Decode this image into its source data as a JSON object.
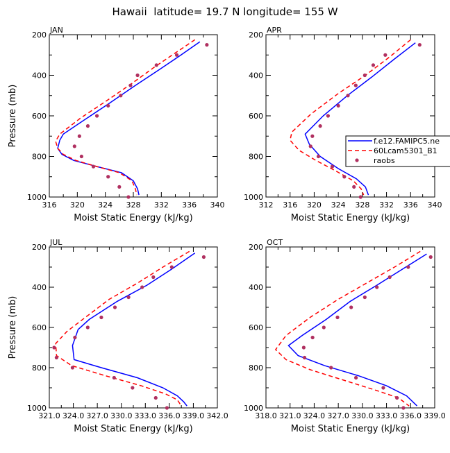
{
  "figure": {
    "title": "Hawaii  latitude= 19.7 N longitude= 155 W"
  },
  "legend": {
    "entries": [
      {
        "label": "f.e12.FAMIPC5.ne",
        "style": "solid",
        "color": "#0000ff"
      },
      {
        "label": "60Lcam5301_B1",
        "style": "dashed",
        "color": "#ff0000"
      },
      {
        "label": "raobs",
        "style": "dot",
        "color": "#b03060"
      }
    ]
  },
  "chart_data": [
    {
      "type": "line",
      "panel_label": "JAN",
      "xlabel": "Moist Static Energy (kJ/kg)",
      "ylabel": "Pressure (mb)",
      "xlim": [
        316,
        340
      ],
      "ylim": [
        200,
        1000
      ],
      "y_inverted": true,
      "xtick_labels": [
        "316",
        "320",
        "324",
        "328",
        "332",
        "336",
        "340"
      ],
      "ytick_labels": [
        "200",
        "400",
        "600",
        "800",
        "1000"
      ],
      "series": [
        {
          "name": "f.e12.FAMIPC5.ne",
          "points": [
            [
              337.5,
              235
            ],
            [
              334.8,
              300
            ],
            [
              331.8,
              370
            ],
            [
              328.3,
              450
            ],
            [
              324.5,
              540
            ],
            [
              321,
              620
            ],
            [
              318,
              690
            ],
            [
              317.5,
              720
            ],
            [
              317.2,
              760
            ],
            [
              317.8,
              790
            ],
            [
              319.5,
              820
            ],
            [
              322.8,
              850
            ],
            [
              326.3,
              880
            ],
            [
              328,
              920
            ],
            [
              328.6,
              960
            ],
            [
              328.8,
              990
            ]
          ]
        },
        {
          "name": "60Lcam5301_B1",
          "points": [
            [
              336.8,
              225
            ],
            [
              334,
              290
            ],
            [
              331,
              360
            ],
            [
              327.8,
              440
            ],
            [
              324,
              530
            ],
            [
              320.5,
              610
            ],
            [
              317.5,
              690
            ],
            [
              316.9,
              725
            ],
            [
              317.2,
              760
            ],
            [
              318,
              790
            ],
            [
              319.8,
              820
            ],
            [
              322.8,
              850
            ],
            [
              326,
              880
            ],
            [
              327.8,
              920
            ],
            [
              328.3,
              960
            ],
            [
              328.5,
              990
            ]
          ]
        },
        {
          "name": "raobs",
          "points": [
            [
              338.5,
              250
            ],
            [
              334.2,
              300
            ],
            [
              331.3,
              350
            ],
            [
              328.6,
              400
            ],
            [
              327.6,
              450
            ],
            [
              326.2,
              500
            ],
            [
              324.4,
              550
            ],
            [
              322.8,
              600
            ],
            [
              321.5,
              650
            ],
            [
              320.3,
              700
            ],
            [
              319.6,
              750
            ],
            [
              320.6,
              800
            ],
            [
              322.3,
              850
            ],
            [
              324.4,
              900
            ],
            [
              326,
              950
            ],
            [
              327.3,
              1000
            ]
          ]
        }
      ]
    },
    {
      "type": "line",
      "panel_label": "APR",
      "xlabel": "Moist Static Energy (kJ/kg)",
      "ylabel": "",
      "xlim": [
        312,
        340
      ],
      "ylim": [
        200,
        1000
      ],
      "y_inverted": true,
      "xtick_labels": [
        "312",
        "316",
        "320",
        "324",
        "328",
        "332",
        "336",
        "340"
      ],
      "ytick_labels": [
        "200",
        "400",
        "600",
        "800",
        "1000"
      ],
      "series": [
        {
          "name": "f.e12.FAMIPC5.ne",
          "points": [
            [
              336.8,
              240
            ],
            [
              333.3,
              320
            ],
            [
              329.5,
              410
            ],
            [
              325.5,
              500
            ],
            [
              321.5,
              600
            ],
            [
              318.5,
              690
            ],
            [
              319.2,
              740
            ],
            [
              321,
              800
            ],
            [
              324,
              860
            ],
            [
              327,
              910
            ],
            [
              328.5,
              950
            ],
            [
              329,
              990
            ]
          ]
        },
        {
          "name": "60Lcam5301_B1",
          "points": [
            [
              336,
              225
            ],
            [
              332.5,
              310
            ],
            [
              328.5,
              400
            ],
            [
              324,
              490
            ],
            [
              319.5,
              590
            ],
            [
              316.3,
              680
            ],
            [
              316,
              720
            ],
            [
              317.5,
              770
            ],
            [
              320.3,
              820
            ],
            [
              323.5,
              870
            ],
            [
              326.5,
              920
            ],
            [
              327.8,
              960
            ],
            [
              328.2,
              990
            ]
          ]
        },
        {
          "name": "raobs",
          "points": [
            [
              337.5,
              250
            ],
            [
              331.8,
              300
            ],
            [
              329.8,
              350
            ],
            [
              328.4,
              400
            ],
            [
              326.9,
              450
            ],
            [
              325.6,
              500
            ],
            [
              324,
              550
            ],
            [
              322.3,
              600
            ],
            [
              321,
              650
            ],
            [
              319.7,
              700
            ],
            [
              319.4,
              750
            ],
            [
              320.7,
              800
            ],
            [
              323,
              850
            ],
            [
              325,
              900
            ],
            [
              326.6,
              950
            ],
            [
              327.7,
              1000
            ]
          ]
        }
      ]
    },
    {
      "type": "line",
      "panel_label": "JUL",
      "xlabel": "Moist Static Energy (kJ/kg)",
      "ylabel": "Pressure (mb)",
      "xlim": [
        321.0,
        342.0
      ],
      "ylim": [
        200,
        1000
      ],
      "y_inverted": true,
      "xtick_labels": [
        "321.0",
        "324.0",
        "327.0",
        "330.0",
        "333.0",
        "336.0",
        "339.0",
        "342.0"
      ],
      "ytick_labels": [
        "200",
        "400",
        "600",
        "800",
        "1000"
      ],
      "series": [
        {
          "name": "f.e12.FAMIPC5.ne",
          "points": [
            [
              339.2,
              230
            ],
            [
              336.3,
              310
            ],
            [
              333.2,
              390
            ],
            [
              329.5,
              470
            ],
            [
              326,
              560
            ],
            [
              324.6,
              610
            ],
            [
              323.9,
              690
            ],
            [
              324.1,
              760
            ],
            [
              327.5,
              800
            ],
            [
              332,
              850
            ],
            [
              335.2,
              900
            ],
            [
              337,
              940
            ],
            [
              337.8,
              970
            ],
            [
              338.2,
              990
            ]
          ]
        },
        {
          "name": "60Lcam5301_B1",
          "points": [
            [
              338.5,
              222
            ],
            [
              335.2,
              300
            ],
            [
              332,
              380
            ],
            [
              328.5,
              460
            ],
            [
              325.5,
              550
            ],
            [
              323.2,
              620
            ],
            [
              321.8,
              680
            ],
            [
              321.9,
              740
            ],
            [
              323.8,
              790
            ],
            [
              328,
              840
            ],
            [
              332.5,
              890
            ],
            [
              335.5,
              930
            ],
            [
              337,
              960
            ],
            [
              337.5,
              990
            ]
          ]
        },
        {
          "name": "raobs",
          "points": [
            [
              340.3,
              250
            ],
            [
              336.3,
              300
            ],
            [
              334,
              350
            ],
            [
              332.6,
              400
            ],
            [
              330.9,
              450
            ],
            [
              329.2,
              500
            ],
            [
              327.5,
              550
            ],
            [
              325.8,
              600
            ],
            [
              324.2,
              650
            ],
            [
              321.6,
              700
            ],
            [
              321.9,
              750
            ],
            [
              323.9,
              800
            ],
            [
              329.1,
              850
            ],
            [
              331.4,
              900
            ],
            [
              334.3,
              950
            ],
            [
              335.7,
              1000
            ]
          ]
        }
      ]
    },
    {
      "type": "line",
      "panel_label": "OCT",
      "xlabel": "Moist Static Energy (kJ/kg)",
      "ylabel": "",
      "xlim": [
        318.0,
        339.0
      ],
      "ylim": [
        200,
        1000
      ],
      "y_inverted": true,
      "xtick_labels": [
        "318.0",
        "321.0",
        "324.0",
        "327.0",
        "330.0",
        "333.0",
        "336.0",
        "339.0"
      ],
      "ytick_labels": [
        "200",
        "400",
        "600",
        "800",
        "1000"
      ],
      "series": [
        {
          "name": "f.e12.FAMIPC5.ne",
          "points": [
            [
              338,
              235
            ],
            [
              335,
              310
            ],
            [
              331.8,
              390
            ],
            [
              328.5,
              470
            ],
            [
              325.5,
              560
            ],
            [
              322.5,
              640
            ],
            [
              320.8,
              690
            ],
            [
              322,
              740
            ],
            [
              325.3,
              790
            ],
            [
              329.5,
              840
            ],
            [
              333,
              890
            ],
            [
              335.5,
              940
            ],
            [
              336.8,
              990
            ]
          ]
        },
        {
          "name": "60Lcam5301_B1",
          "points": [
            [
              337.2,
              222
            ],
            [
              334,
              300
            ],
            [
              330.5,
              380
            ],
            [
              327,
              460
            ],
            [
              323.5,
              550
            ],
            [
              320.5,
              640
            ],
            [
              319.2,
              710
            ],
            [
              320.5,
              760
            ],
            [
              323.5,
              810
            ],
            [
              327.5,
              860
            ],
            [
              331.5,
              910
            ],
            [
              334.5,
              950
            ],
            [
              335.8,
              990
            ]
          ]
        },
        {
          "name": "raobs",
          "points": [
            [
              338.5,
              250
            ],
            [
              335.7,
              300
            ],
            [
              333.4,
              350
            ],
            [
              331.8,
              400
            ],
            [
              330.3,
              450
            ],
            [
              328.6,
              500
            ],
            [
              326.9,
              550
            ],
            [
              325.2,
              600
            ],
            [
              323.8,
              650
            ],
            [
              322.7,
              700
            ],
            [
              322.8,
              750
            ],
            [
              326.1,
              800
            ],
            [
              329.2,
              850
            ],
            [
              332.6,
              900
            ],
            [
              334.3,
              950
            ],
            [
              335.1,
              1000
            ]
          ]
        }
      ]
    }
  ]
}
